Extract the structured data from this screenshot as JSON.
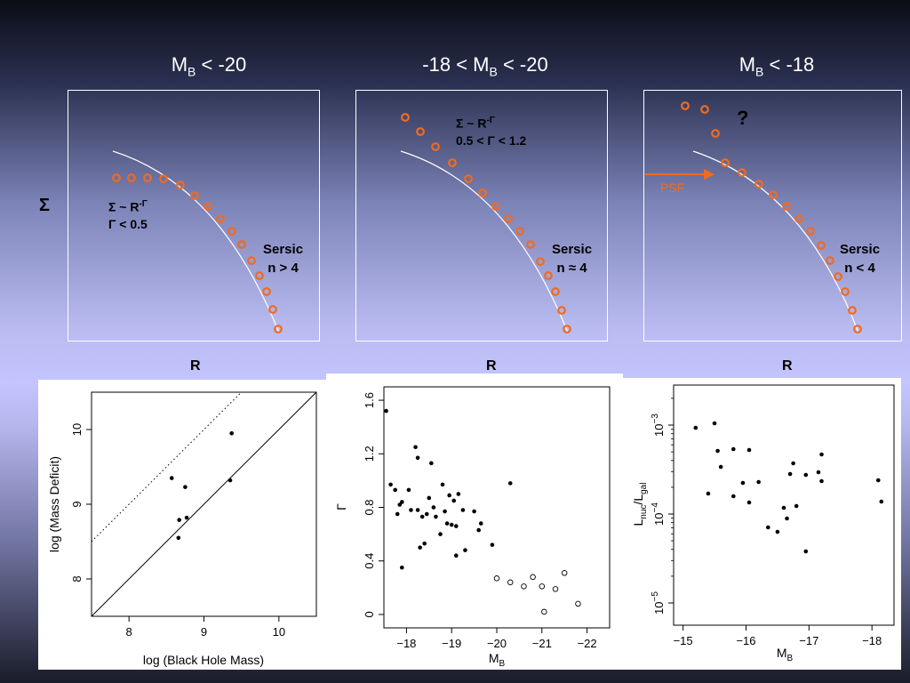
{
  "titles": {
    "left": {
      "main": "M",
      "sub": "B",
      "rest": " < -20"
    },
    "middle": {
      "pre": "-18 < M",
      "sub": "B",
      "rest": " < -20"
    },
    "right": {
      "main": "M",
      "sub": "B",
      "rest": " < -18"
    }
  },
  "schematic": {
    "sigma_label": "Σ",
    "r_label": "R",
    "left": {
      "law": "Σ ~ R",
      "exp": "-Γ",
      "cond": "Γ < 0.5",
      "sersic": "Sersic",
      "n": "n > 4"
    },
    "middle": {
      "law": "Σ ~ R",
      "exp": "-Γ",
      "cond": "0.5 < Γ < 1.2",
      "sersic": "Sersic",
      "n": "n ≈ 4"
    },
    "right": {
      "psf": "PSF",
      "question": "?",
      "sersic": "Sersic",
      "n": "n < 4"
    },
    "colors": {
      "points": "#f36a1c",
      "curve": "#ffffff",
      "frame": "#ffffff"
    }
  },
  "chart_data": [
    {
      "type": "scatter",
      "xlabel": "log (Black Hole Mass)",
      "ylabel": "log (Mass Deficit)",
      "xlim": [
        7.5,
        10.5
      ],
      "ylim": [
        7.5,
        10.5
      ],
      "xticks": [
        "8",
        "9",
        "10"
      ],
      "yticks": [
        "8",
        "9",
        "10"
      ],
      "points": [
        {
          "x": 8.57,
          "y": 9.35
        },
        {
          "x": 8.75,
          "y": 9.23
        },
        {
          "x": 8.67,
          "y": 8.79
        },
        {
          "x": 8.77,
          "y": 8.82
        },
        {
          "x": 8.66,
          "y": 8.55
        },
        {
          "x": 9.37,
          "y": 9.95
        },
        {
          "x": 9.35,
          "y": 9.32
        }
      ],
      "lines": [
        {
          "style": "solid",
          "x": [
            7.5,
            10.5
          ],
          "y": [
            7.5,
            10.5
          ]
        },
        {
          "style": "dotted",
          "x": [
            7.5,
            9.5
          ],
          "y": [
            8.5,
            10.5
          ]
        }
      ]
    },
    {
      "type": "scatter",
      "xlabel": "M",
      "xlabel_sub": "B",
      "ylabel": "Γ",
      "xlim": [
        -17.5,
        -22.5
      ],
      "ylim": [
        -0.1,
        1.7
      ],
      "xticks": [
        "−18",
        "−19",
        "−20",
        "−21",
        "−22"
      ],
      "yticks": [
        "0",
        "0.4",
        "0.8",
        "1.2",
        "1.6"
      ],
      "filled": [
        {
          "x": -17.55,
          "y": 1.52
        },
        {
          "x": -17.65,
          "y": 0.97
        },
        {
          "x": -17.75,
          "y": 0.93
        },
        {
          "x": -17.8,
          "y": 0.75
        },
        {
          "x": -17.85,
          "y": 0.82
        },
        {
          "x": -17.9,
          "y": 0.84
        },
        {
          "x": -17.9,
          "y": 0.35
        },
        {
          "x": -18.05,
          "y": 0.93
        },
        {
          "x": -18.1,
          "y": 0.78
        },
        {
          "x": -18.2,
          "y": 1.25
        },
        {
          "x": -18.25,
          "y": 1.17
        },
        {
          "x": -18.25,
          "y": 0.78
        },
        {
          "x": -18.3,
          "y": 0.5
        },
        {
          "x": -18.35,
          "y": 0.73
        },
        {
          "x": -18.4,
          "y": 0.53
        },
        {
          "x": -18.45,
          "y": 0.75
        },
        {
          "x": -18.5,
          "y": 0.87
        },
        {
          "x": -18.55,
          "y": 1.13
        },
        {
          "x": -18.6,
          "y": 0.8
        },
        {
          "x": -18.65,
          "y": 0.73
        },
        {
          "x": -18.75,
          "y": 0.6
        },
        {
          "x": -18.8,
          "y": 0.97
        },
        {
          "x": -18.85,
          "y": 0.77
        },
        {
          "x": -18.9,
          "y": 0.68
        },
        {
          "x": -18.95,
          "y": 0.89
        },
        {
          "x": -19.0,
          "y": 0.67
        },
        {
          "x": -19.05,
          "y": 0.85
        },
        {
          "x": -19.1,
          "y": 0.44
        },
        {
          "x": -19.1,
          "y": 0.66
        },
        {
          "x": -19.15,
          "y": 0.9
        },
        {
          "x": -19.25,
          "y": 0.78
        },
        {
          "x": -19.3,
          "y": 0.48
        },
        {
          "x": -19.5,
          "y": 0.77
        },
        {
          "x": -19.6,
          "y": 0.63
        },
        {
          "x": -19.65,
          "y": 0.68
        },
        {
          "x": -19.9,
          "y": 0.52
        },
        {
          "x": -20.3,
          "y": 0.98
        }
      ],
      "open": [
        {
          "x": -20.0,
          "y": 0.27
        },
        {
          "x": -20.3,
          "y": 0.24
        },
        {
          "x": -20.6,
          "y": 0.21
        },
        {
          "x": -20.8,
          "y": 0.28
        },
        {
          "x": -21.0,
          "y": 0.21
        },
        {
          "x": -21.05,
          "y": 0.02
        },
        {
          "x": -21.3,
          "y": 0.19
        },
        {
          "x": -21.5,
          "y": 0.31
        },
        {
          "x": -21.8,
          "y": 0.08
        }
      ]
    },
    {
      "type": "scatter",
      "xlabel": "M",
      "xlabel_sub": "B",
      "ylabel_main": "L",
      "ylabel_sub1": "nuc",
      "ylabel_sep": "/L",
      "ylabel_sub2": "gal",
      "xlim": [
        -14.85,
        -18.35
      ],
      "ylog": true,
      "ylim_log10": [
        -5.25,
        -2.55
      ],
      "xticks": [
        "−15",
        "−16",
        "−17",
        "−18"
      ],
      "yticks": [
        {
          "base": "10",
          "exp": "−3"
        },
        {
          "base": "10",
          "exp": "−4"
        },
        {
          "base": "10",
          "exp": "−5"
        }
      ],
      "points_log10": [
        {
          "x": -15.2,
          "y": -3.03
        },
        {
          "x": -15.4,
          "y": -3.77
        },
        {
          "x": -15.5,
          "y": -2.98
        },
        {
          "x": -15.55,
          "y": -3.29
        },
        {
          "x": -15.6,
          "y": -3.47
        },
        {
          "x": -15.8,
          "y": -3.27
        },
        {
          "x": -15.8,
          "y": -3.8
        },
        {
          "x": -15.95,
          "y": -3.65
        },
        {
          "x": -16.05,
          "y": -3.28
        },
        {
          "x": -16.05,
          "y": -3.87
        },
        {
          "x": -16.2,
          "y": -3.64
        },
        {
          "x": -16.35,
          "y": -4.15
        },
        {
          "x": -16.5,
          "y": -4.2
        },
        {
          "x": -16.6,
          "y": -3.93
        },
        {
          "x": -16.65,
          "y": -4.05
        },
        {
          "x": -16.7,
          "y": -3.55
        },
        {
          "x": -16.75,
          "y": -3.43
        },
        {
          "x": -16.8,
          "y": -3.91
        },
        {
          "x": -16.95,
          "y": -3.56
        },
        {
          "x": -16.95,
          "y": -4.42
        },
        {
          "x": -17.15,
          "y": -3.53
        },
        {
          "x": -17.2,
          "y": -3.33
        },
        {
          "x": -17.2,
          "y": -3.63
        },
        {
          "x": -18.1,
          "y": -3.62
        },
        {
          "x": -18.15,
          "y": -3.86
        }
      ]
    }
  ]
}
